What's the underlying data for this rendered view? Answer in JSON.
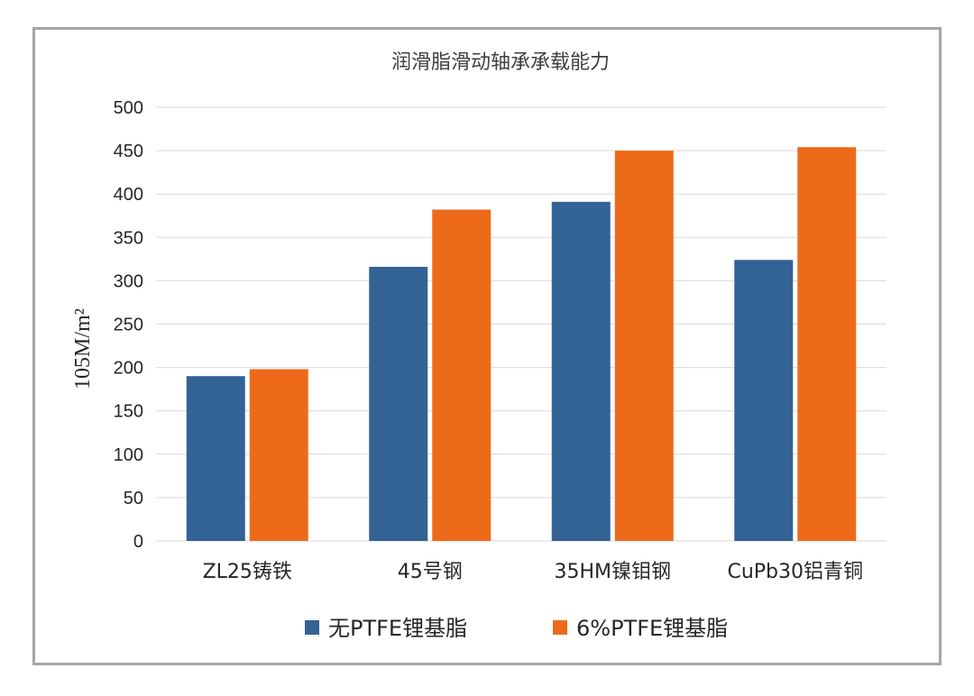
{
  "chart_data": {
    "type": "bar",
    "title": "润滑脂滑动轴承承载能力",
    "ylabel": "105M/m²",
    "xlabel": "",
    "ylim": [
      0,
      500
    ],
    "yticks": [
      0,
      50,
      100,
      150,
      200,
      250,
      300,
      350,
      400,
      450,
      500
    ],
    "categories": [
      "ZL25铸铁",
      "45号钢",
      "35HM镍钼钢",
      "CuPb30铝青铜"
    ],
    "series": [
      {
        "name": "无PTFE锂基脂",
        "color": "#336294",
        "values": [
          190,
          316,
          391,
          324
        ]
      },
      {
        "name": "6%PTFE锂基脂",
        "color": "#ed6a1b",
        "values": [
          198,
          382,
          450,
          454
        ]
      }
    ],
    "grid": true,
    "legend_position": "bottom"
  }
}
